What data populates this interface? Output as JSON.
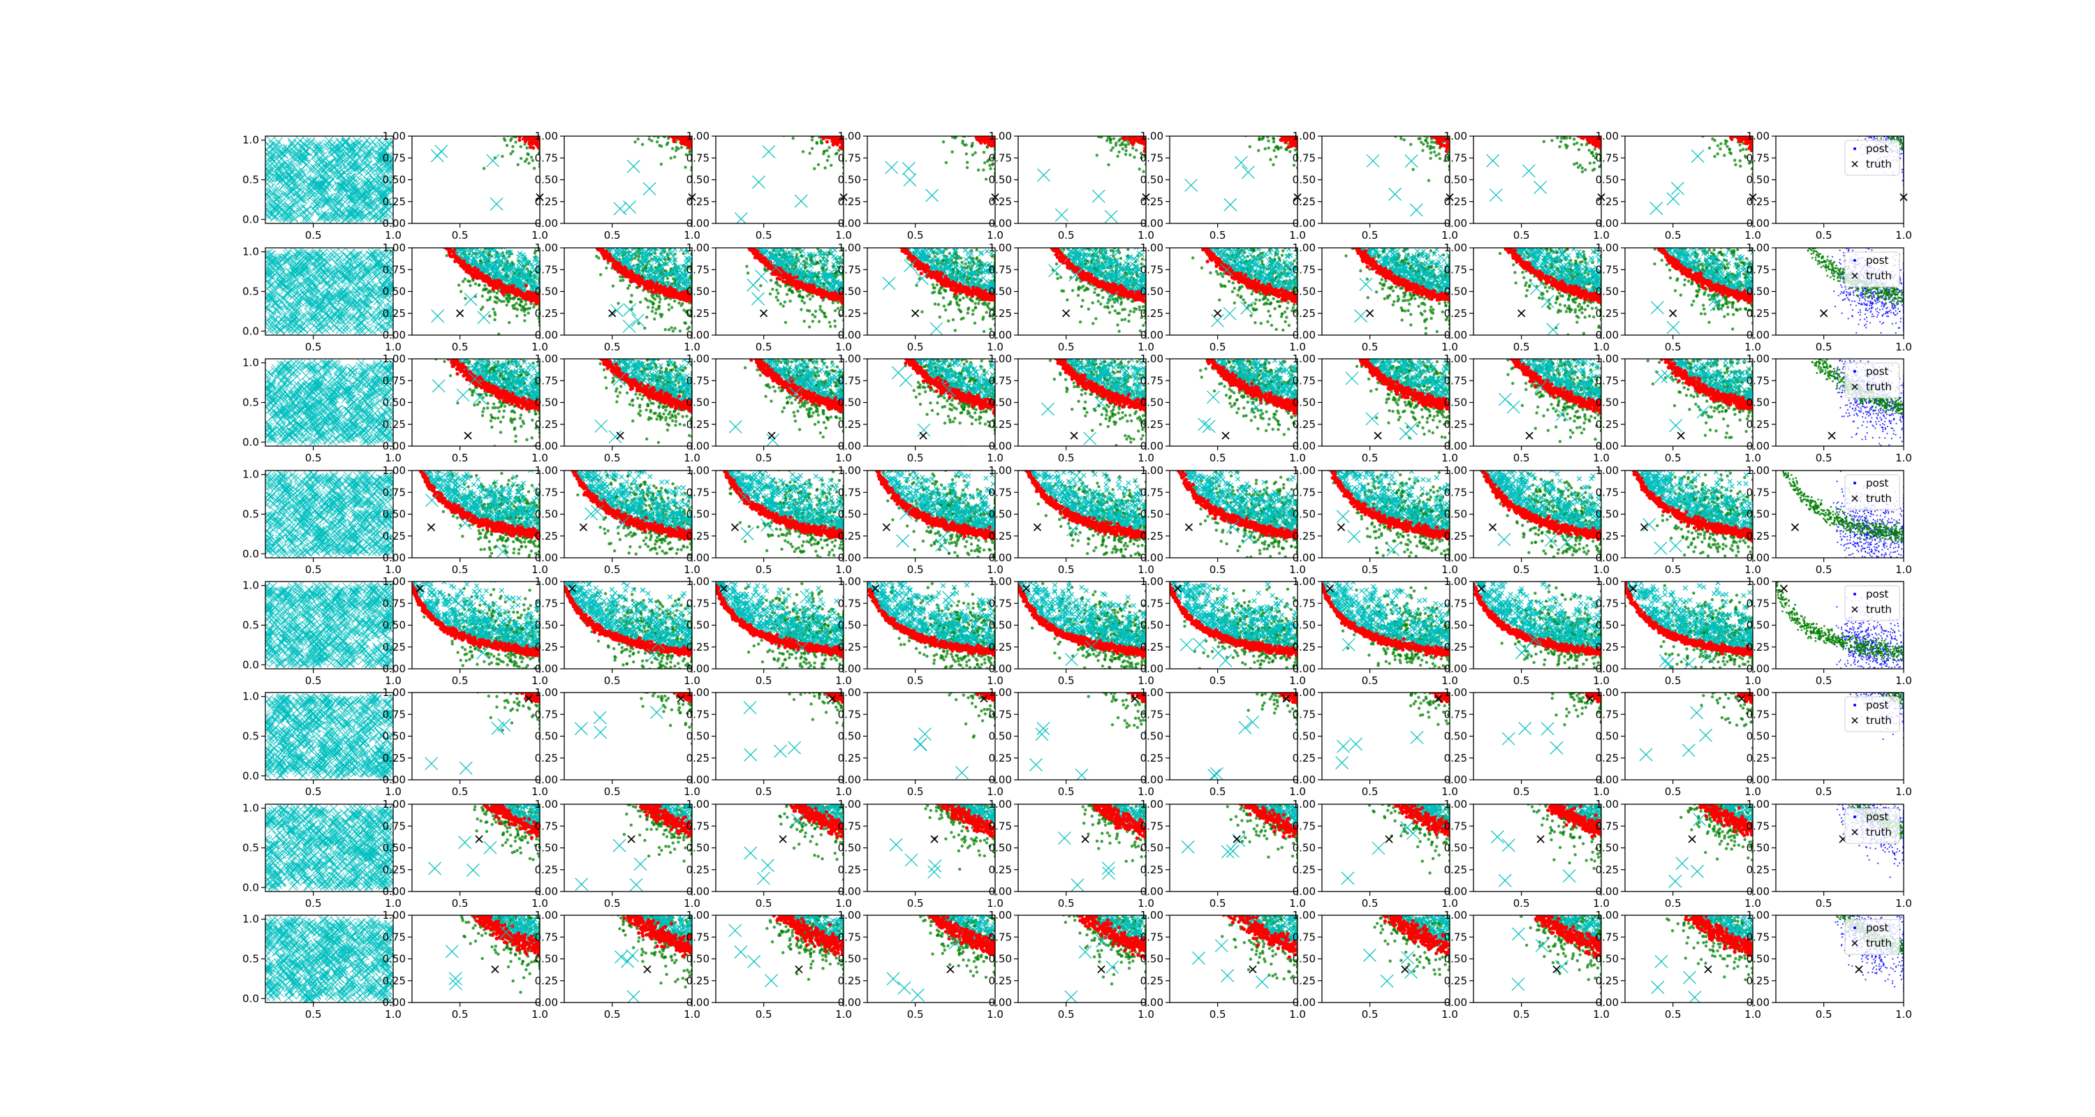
{
  "figure": {
    "rows": 8,
    "cols": 11,
    "colors": {
      "background": "#ffffff",
      "prior_samples": "#00bfbf",
      "likelihood_band": "#ff0000",
      "population": "#008000",
      "posterior": "#0000ff",
      "truth_marker": "#000000",
      "axes": "#000000"
    }
  },
  "legend": {
    "entries": [
      {
        "label": "post",
        "marker": "blue-dot-icon"
      },
      {
        "label": "truth",
        "marker": "black-x-icon"
      }
    ]
  },
  "chart_data": {
    "type": "scatter",
    "layout": "8x11 grid of scatter subplots",
    "first_column": {
      "description_series": "cyan x markers uniformly filling [0.2,1.0]x[0,1]",
      "xlim": [
        0.2,
        1.0
      ],
      "ylim": [
        -0.05,
        1.05
      ],
      "x_ticks": [
        "0.5",
        "1.0"
      ],
      "y_ticks": [
        "0.0",
        "0.5",
        "1.0"
      ]
    },
    "other_columns": {
      "xlim": [
        0.2,
        1.0
      ],
      "ylim": [
        0.0,
        1.0
      ],
      "x_ticks": [
        "0.5",
        "1.0"
      ],
      "y_ticks": [
        "0.00",
        "0.25",
        "0.50",
        "0.75",
        "1.00"
      ]
    },
    "last_column_legend": [
      "post",
      "truth"
    ],
    "rows": [
      {
        "truth": [
          1.0,
          0.3
        ],
        "curve_c": 0.92,
        "width": 0.08
      },
      {
        "truth": [
          0.5,
          0.25
        ],
        "curve_c": 0.42,
        "width": 0.05
      },
      {
        "truth": [
          0.55,
          0.12
        ],
        "curve_c": 0.45,
        "width": 0.06
      },
      {
        "truth": [
          0.32,
          0.35
        ],
        "curve_c": 0.26,
        "width": 0.05
      },
      {
        "truth": [
          0.25,
          0.92
        ],
        "curve_c": 0.19,
        "width": 0.04
      },
      {
        "truth": [
          0.93,
          0.93
        ],
        "curve_c": 0.93,
        "width": 0.06
      },
      {
        "truth": [
          0.62,
          0.6
        ],
        "curve_c": 0.7,
        "width": 0.09
      },
      {
        "truth": [
          0.72,
          0.38
        ],
        "curve_c": 0.62,
        "width": 0.1
      }
    ]
  }
}
